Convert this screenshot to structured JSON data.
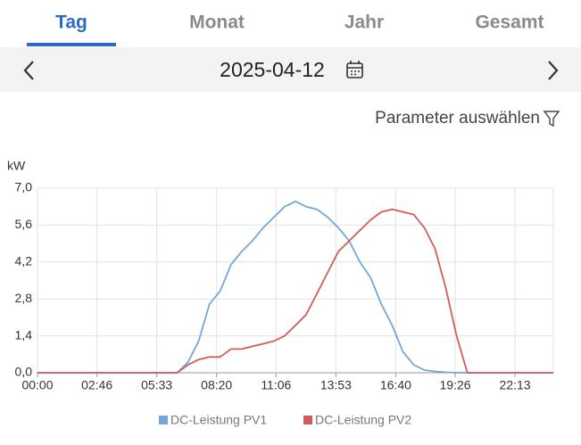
{
  "tabs": [
    "Tag",
    "Monat",
    "Jahr",
    "Gesamt"
  ],
  "date": "2025-04-12",
  "parameter_button": "Parameter auswählen",
  "chart_data": {
    "type": "line",
    "y_unit": "kW",
    "x": [
      0,
      30,
      60,
      90,
      120,
      150,
      180,
      210,
      240,
      270,
      300,
      330,
      360,
      390,
      420,
      450,
      480,
      510,
      540,
      570,
      600,
      630,
      660,
      690,
      720,
      750,
      780,
      810,
      840,
      870,
      900,
      930,
      960,
      990,
      1020,
      1050,
      1080,
      1110,
      1140,
      1170,
      1200,
      1230,
      1260,
      1290,
      1320,
      1350,
      1380,
      1410,
      1440
    ],
    "series": [
      {
        "name": "DC-Leistung PV1",
        "color": "#72a8da",
        "values": [
          0,
          0,
          0,
          0,
          0,
          0,
          0,
          0,
          0,
          0,
          0,
          0,
          0,
          0,
          0.4,
          1.2,
          2.6,
          3.1,
          4.1,
          4.6,
          5.0,
          5.5,
          5.9,
          6.3,
          6.5,
          6.3,
          6.2,
          5.9,
          5.5,
          5.0,
          4.2,
          3.6,
          2.6,
          1.8,
          0.8,
          0.3,
          0.1,
          0.05,
          0.02,
          0,
          0,
          0,
          0,
          0,
          0,
          0,
          0,
          0,
          0
        ]
      },
      {
        "name": "DC-Leistung PV2",
        "color": "#d55b5b",
        "values": [
          0,
          0,
          0,
          0,
          0,
          0,
          0,
          0,
          0,
          0,
          0,
          0,
          0,
          0,
          0.3,
          0.5,
          0.6,
          0.6,
          0.9,
          0.9,
          1.0,
          1.1,
          1.2,
          1.4,
          1.8,
          2.2,
          3.0,
          3.8,
          4.6,
          5.0,
          5.4,
          5.8,
          6.1,
          6.2,
          6.1,
          6.0,
          5.5,
          4.7,
          3.2,
          1.4,
          0,
          0,
          0,
          0,
          0,
          0,
          0,
          0,
          0
        ]
      }
    ],
    "xlim": [
      0,
      1440
    ],
    "xticks": [
      {
        "value": 0,
        "label": "00:00"
      },
      {
        "value": 166,
        "label": "02:46"
      },
      {
        "value": 333,
        "label": "05:33"
      },
      {
        "value": 500,
        "label": "08:20"
      },
      {
        "value": 666,
        "label": "11:06"
      },
      {
        "value": 833,
        "label": "13:53"
      },
      {
        "value": 1000,
        "label": "16:40"
      },
      {
        "value": 1166,
        "label": "19:26"
      },
      {
        "value": 1333,
        "label": "22:13"
      }
    ],
    "ylim": [
      0,
      7
    ],
    "yticks": [
      {
        "value": 0,
        "label": "0,0"
      },
      {
        "value": 1.4,
        "label": "1,4"
      },
      {
        "value": 2.8,
        "label": "2,8"
      },
      {
        "value": 4.2,
        "label": "4,2"
      },
      {
        "value": 5.6,
        "label": "5,6"
      },
      {
        "value": 7,
        "label": "7,0"
      }
    ],
    "grid": true
  }
}
